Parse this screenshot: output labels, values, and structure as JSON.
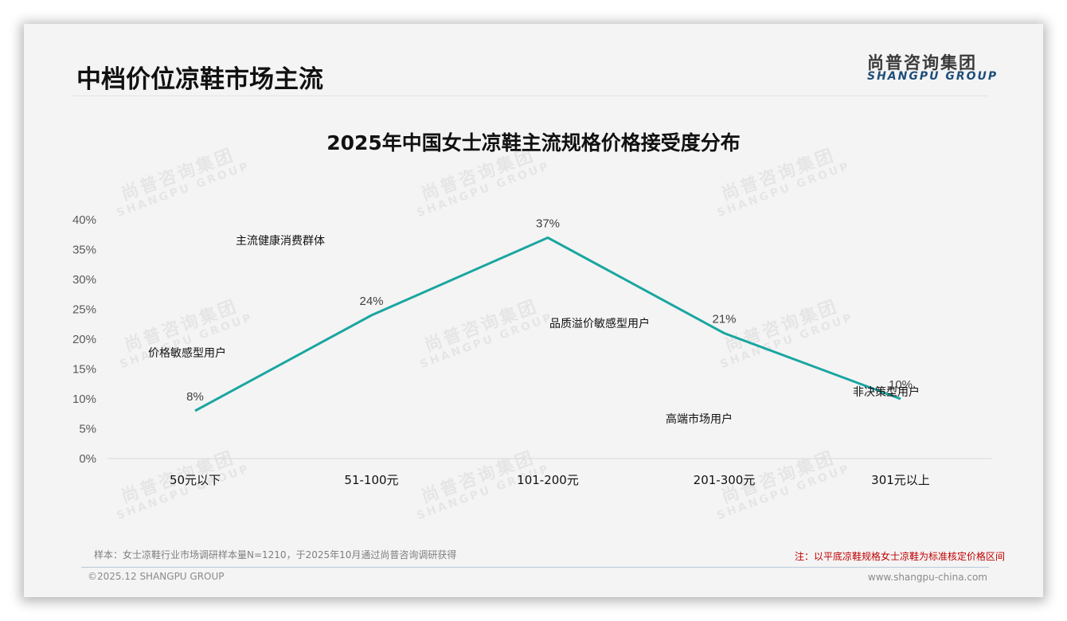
{
  "page": {
    "title": "中档价位凉鞋市场主流",
    "logo": {
      "cn": "尚普咨询集团",
      "en": "SHANGPU GROUP"
    },
    "watermark": {
      "cn": "尚普咨询集团",
      "en": "SHANGPU GROUP"
    },
    "footer": {
      "sample": "样本：女士凉鞋行业市场调研样本量N=1210，于2025年10月通过尚普咨询调研获得",
      "note": "注：以平底凉鞋规格女士凉鞋为标准核定价格区间",
      "copyright": "©2025.12 SHANGPU GROUP",
      "url": "www.shangpu-china.com"
    }
  },
  "chart_data": {
    "type": "line",
    "title": "2025年中国女士凉鞋主流规格价格接受度分布",
    "xlabel": "",
    "ylabel": "",
    "categories": [
      "50元以下",
      "51-100元",
      "101-200元",
      "201-300元",
      "301元以上"
    ],
    "series": [
      {
        "name": "价格接受度",
        "values": [
          8,
          24,
          37,
          21,
          10
        ],
        "color": "#1aa6a0"
      }
    ],
    "data_labels": [
      "8%",
      "24%",
      "37%",
      "21%",
      "10%"
    ],
    "yticks": [
      "0%",
      "5%",
      "10%",
      "15%",
      "20%",
      "25%",
      "30%",
      "35%",
      "40%"
    ],
    "ylim": [
      0,
      40
    ],
    "grid": false,
    "legend": "none",
    "annotations": [
      {
        "text": "价格敏感型用户",
        "category": "50元以下"
      },
      {
        "text": "主流健康消费群体",
        "category": "51-100元"
      },
      {
        "text": "品质溢价敏感型用户",
        "category": "101-200元"
      },
      {
        "text": "高端市场用户",
        "category": "201-300元"
      },
      {
        "text": "非决策型用户",
        "category": "301元以上"
      }
    ]
  }
}
